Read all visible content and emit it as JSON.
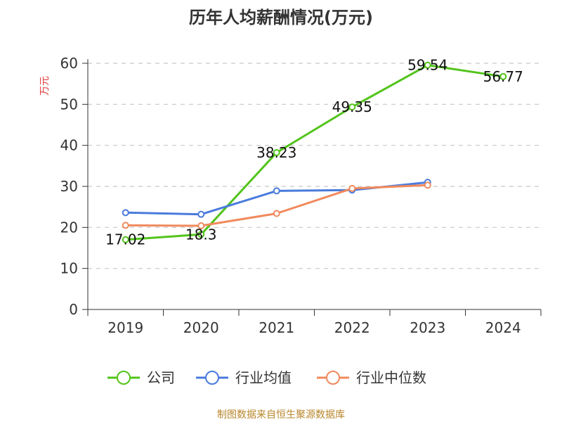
{
  "chart_data": {
    "type": "line",
    "title": "历年人均薪酬情况(万元)",
    "ylabel": "万元",
    "xlabel": "",
    "categories": [
      "2019",
      "2020",
      "2021",
      "2022",
      "2023",
      "2024"
    ],
    "ylim": [
      0,
      60
    ],
    "yticks": [
      0,
      10,
      20,
      30,
      40,
      50,
      60
    ],
    "grid": true,
    "legend_position": "bottom",
    "series": [
      {
        "name": "公司",
        "color": "#52c41a",
        "values": [
          17.02,
          18.3,
          38.23,
          49.35,
          59.54,
          56.77
        ],
        "labels": [
          "17.02",
          "18.3",
          "38.23",
          "49.35",
          "59.54",
          "56.77"
        ]
      },
      {
        "name": "行业均值",
        "color": "#4a7bdc",
        "values": [
          23.6,
          23.2,
          28.9,
          29.1,
          31.0,
          null
        ]
      },
      {
        "name": "行业中位数",
        "color": "#f08a5d",
        "values": [
          20.5,
          20.4,
          23.4,
          29.5,
          30.3,
          null
        ]
      }
    ]
  },
  "source": "制图数据来自恒生聚源数据库"
}
